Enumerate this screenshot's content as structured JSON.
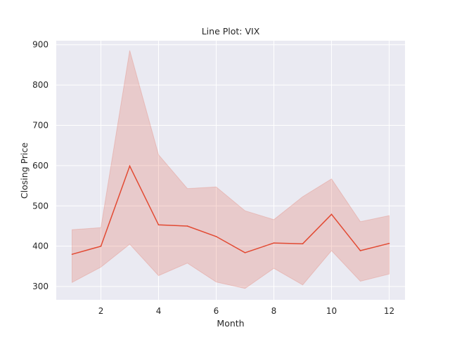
{
  "chart_data": {
    "type": "line",
    "title": "Line Plot: VIX",
    "xlabel": "Month",
    "ylabel": "Closing Price",
    "x": [
      1,
      2,
      3,
      4,
      5,
      6,
      7,
      8,
      9,
      10,
      11,
      12
    ],
    "series": [
      {
        "values": [
          380,
          400,
          599,
          453,
          450,
          424,
          384,
          408,
          406,
          479,
          389,
          407
        ],
        "ci_lower": [
          310,
          348,
          405,
          327,
          358,
          311,
          295,
          345,
          304,
          389,
          313,
          331
        ],
        "ci_upper": [
          441,
          446,
          886,
          627,
          543,
          547,
          488,
          466,
          523,
          567,
          461,
          476
        ],
        "color": "#e24a33"
      }
    ],
    "xticks": [
      2,
      4,
      6,
      8,
      10,
      12
    ],
    "yticks": [
      300,
      400,
      500,
      600,
      700,
      800,
      900
    ],
    "xlim": [
      0.45,
      12.55
    ],
    "ylim": [
      267,
      910
    ],
    "grid": true,
    "style": {
      "background": "#eaeaf2",
      "grid_color": "#ffffff",
      "band_opacity": 0.2
    }
  }
}
